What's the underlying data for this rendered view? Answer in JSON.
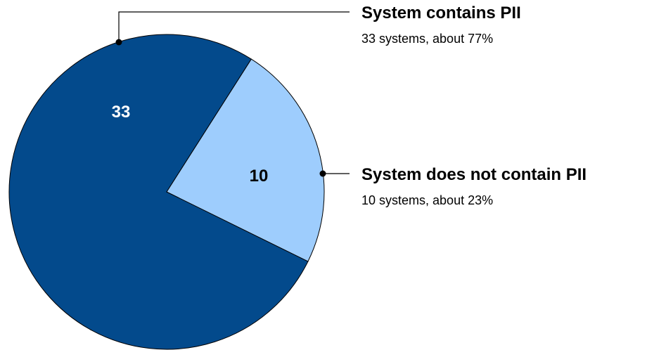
{
  "chart_data": {
    "type": "pie",
    "title": "",
    "slices": [
      {
        "label": "System contains PII",
        "value": 33,
        "value_label": "33",
        "description": "33 systems, about 77%",
        "color": "#034a8c",
        "label_color": "#ffffff"
      },
      {
        "label": "System does not contain PII",
        "value": 10,
        "value_label": "10",
        "description": "10 systems, about 23%",
        "color": "#9ecdfd",
        "label_color": "#000000"
      }
    ],
    "legend": "right",
    "slice_outline_color": "#000000"
  }
}
